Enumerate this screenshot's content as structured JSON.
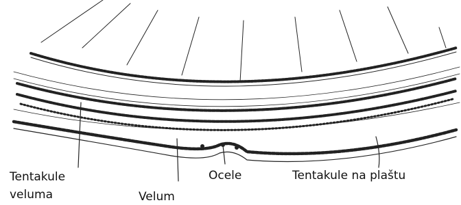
{
  "labels": [
    {
      "lines": [
        "Tentakule",
        "veluma"
      ]
    },
    {
      "text": "Velum"
    },
    {
      "text": "Ocele"
    },
    {
      "text": "Tentakule na plaštu"
    }
  ]
}
